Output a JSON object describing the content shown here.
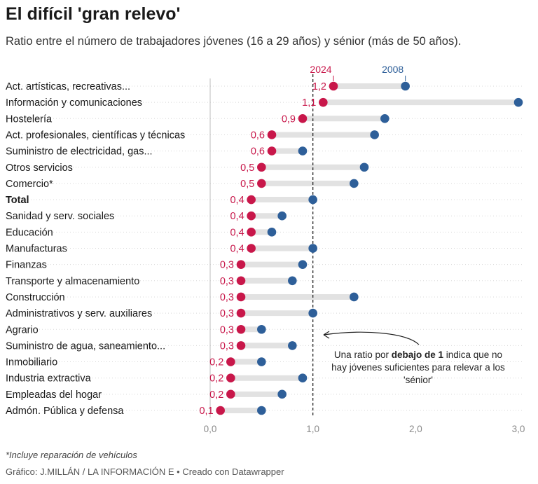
{
  "title": "El difícil 'gran relevo'",
  "subtitle": "Ratio entre el número de trabajadores jóvenes (16 a 29 años) y sénior (más de 50 años).",
  "note": "*Incluye reparación de vehículos",
  "credit": "Gráfico: J.MILLÁN / LA INFORMACIÓN E • Creado con Datawrapper",
  "annotation": {
    "pre": "Una ratio por ",
    "bold": "debajo de 1",
    "post": " indica que no hay jóvenes suficientes para relevar a los 'sénior'"
  },
  "colors": {
    "y2024": "#c8174a",
    "y2008": "#2e5f99",
    "connector": "#e2e2e2",
    "reference": "#222222"
  },
  "chart_data": {
    "type": "dot",
    "xlim": [
      0,
      3
    ],
    "x_ticks": [
      "0,0",
      "1,0",
      "2,0",
      "3,0"
    ],
    "x_tick_values": [
      0,
      1,
      2,
      3
    ],
    "reference_line": 1,
    "series": [
      {
        "name": "2024",
        "color": "#c8174a"
      },
      {
        "name": "2008",
        "color": "#2e5f99"
      }
    ],
    "categories": [
      {
        "label": "Act. artísticas, recreativas...",
        "v2024": 1.2,
        "v2008": 1.9,
        "label2024": "1,2",
        "bold": false
      },
      {
        "label": "Información y comunicaciones",
        "v2024": 1.1,
        "v2008": 3.0,
        "label2024": "1,1",
        "bold": false
      },
      {
        "label": "Hostelería",
        "v2024": 0.9,
        "v2008": 1.7,
        "label2024": "0,9",
        "bold": false
      },
      {
        "label": "Act. profesionales, científicas y técnicas",
        "v2024": 0.6,
        "v2008": 1.6,
        "label2024": "0,6",
        "bold": false
      },
      {
        "label": "Suministro de electricidad, gas...",
        "v2024": 0.6,
        "v2008": 0.9,
        "label2024": "0,6",
        "bold": false
      },
      {
        "label": "Otros servicios",
        "v2024": 0.5,
        "v2008": 1.5,
        "label2024": "0,5",
        "bold": false
      },
      {
        "label": "Comercio*",
        "v2024": 0.5,
        "v2008": 1.4,
        "label2024": "0,5",
        "bold": false
      },
      {
        "label": "Total",
        "v2024": 0.4,
        "v2008": 1.0,
        "label2024": "0,4",
        "bold": true
      },
      {
        "label": "Sanidad y serv. sociales",
        "v2024": 0.4,
        "v2008": 0.7,
        "label2024": "0,4",
        "bold": false
      },
      {
        "label": "Educación",
        "v2024": 0.4,
        "v2008": 0.6,
        "label2024": "0,4",
        "bold": false
      },
      {
        "label": "Manufacturas",
        "v2024": 0.4,
        "v2008": 1.0,
        "label2024": "0,4",
        "bold": false
      },
      {
        "label": "Finanzas",
        "v2024": 0.3,
        "v2008": 0.9,
        "label2024": "0,3",
        "bold": false
      },
      {
        "label": "Transporte y almacenamiento",
        "v2024": 0.3,
        "v2008": 0.8,
        "label2024": "0,3",
        "bold": false
      },
      {
        "label": "Construcción",
        "v2024": 0.3,
        "v2008": 1.4,
        "label2024": "0,3",
        "bold": false
      },
      {
        "label": "Administrativos y serv. auxiliares",
        "v2024": 0.3,
        "v2008": 1.0,
        "label2024": "0,3",
        "bold": false
      },
      {
        "label": "Agrario",
        "v2024": 0.3,
        "v2008": 0.5,
        "label2024": "0,3",
        "bold": false
      },
      {
        "label": "Suministro de agua, saneamiento...",
        "v2024": 0.3,
        "v2008": 0.8,
        "label2024": "0,3",
        "bold": false
      },
      {
        "label": "Inmobiliario",
        "v2024": 0.2,
        "v2008": 0.5,
        "label2024": "0,2",
        "bold": false
      },
      {
        "label": "Industria extractiva",
        "v2024": 0.2,
        "v2008": 0.9,
        "label2024": "0,2",
        "bold": false
      },
      {
        "label": "Empleadas del hogar",
        "v2024": 0.2,
        "v2008": 0.7,
        "label2024": "0,2",
        "bold": false
      },
      {
        "label": "Admón. Pública y defensa",
        "v2024": 0.1,
        "v2008": 0.5,
        "label2024": "0,1",
        "bold": false
      }
    ]
  }
}
